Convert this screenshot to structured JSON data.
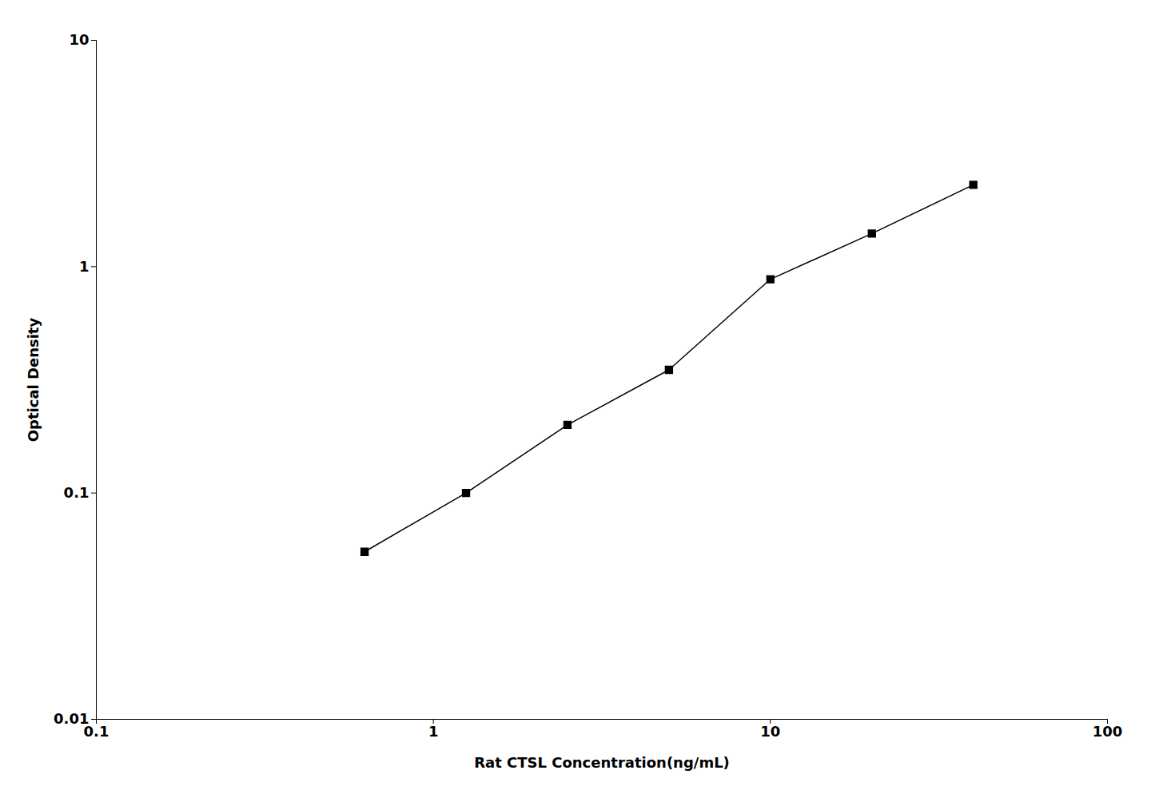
{
  "chart_data": {
    "type": "line",
    "x": [
      0.625,
      1.25,
      2.5,
      5.0,
      10.0,
      20.0,
      40.0
    ],
    "values": [
      0.055,
      0.1,
      0.2,
      0.35,
      0.88,
      1.4,
      2.3
    ],
    "xlabel": "Rat CTSL Concentration(ng/mL)",
    "ylabel": "Optical Density",
    "xlim": [
      0.1,
      100
    ],
    "ylim": [
      0.01,
      10
    ],
    "xticks": [
      0.1,
      1,
      10,
      100
    ],
    "yticks": [
      0.01,
      0.1,
      1,
      10
    ],
    "log": true,
    "grid": false,
    "color": "#000000",
    "marker": "square"
  }
}
